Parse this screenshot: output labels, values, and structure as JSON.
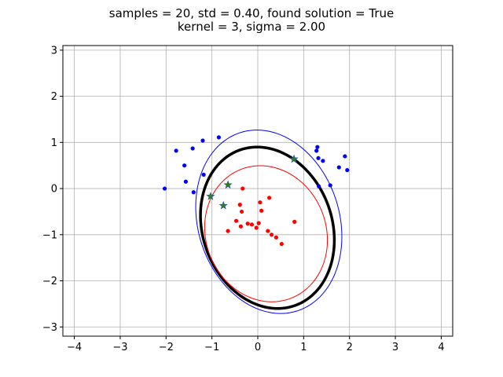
{
  "chart_data": {
    "type": "scatter",
    "title_lines": [
      "samples = 20, std = 0.40, found solution = True",
      "kernel = 3, sigma = 2.00"
    ],
    "xlabel": "",
    "ylabel": "",
    "xlim": [
      -4.25,
      4.25
    ],
    "ylim": [
      -3.2,
      3.1
    ],
    "xticks": [
      -4,
      -3,
      -2,
      -1,
      0,
      1,
      2,
      3,
      4
    ],
    "xtick_labels": [
      "−4",
      "−3",
      "−2",
      "−1",
      "0",
      "1",
      "2",
      "3",
      "4"
    ],
    "yticks": [
      -3,
      -2,
      -1,
      0,
      1,
      2,
      3
    ],
    "ytick_labels": [
      "−3",
      "−2",
      "−1",
      "0",
      "1",
      "2",
      "3"
    ],
    "grid": true,
    "colors": {
      "blue_points": "#0000ff",
      "red_points": "#ff0000",
      "support_vectors": "#2e7d1e",
      "boundary": "#000000",
      "margin_outer": "#0000ff",
      "margin_inner": "#ff0000"
    },
    "series": [
      {
        "kind": "points",
        "color_key": "blue_points",
        "points": [
          [
            -2.03,
            0.0
          ],
          [
            -1.78,
            0.82
          ],
          [
            -1.6,
            0.5
          ],
          [
            -1.57,
            0.15
          ],
          [
            -1.42,
            0.87
          ],
          [
            -1.4,
            -0.08
          ],
          [
            -1.2,
            1.04
          ],
          [
            -1.18,
            0.3
          ],
          [
            -0.85,
            1.11
          ],
          [
            1.28,
            0.82
          ],
          [
            1.3,
            0.9
          ],
          [
            1.32,
            0.66
          ],
          [
            1.33,
            0.05
          ],
          [
            1.42,
            0.6
          ],
          [
            1.58,
            0.07
          ],
          [
            1.77,
            0.46
          ],
          [
            1.9,
            0.7
          ],
          [
            1.95,
            0.4
          ]
        ]
      },
      {
        "kind": "points",
        "color_key": "red_points",
        "points": [
          [
            -0.65,
            -0.92
          ],
          [
            -0.47,
            -0.7
          ],
          [
            -0.39,
            -0.35
          ],
          [
            -0.37,
            -0.82
          ],
          [
            -0.35,
            -0.5
          ],
          [
            -0.33,
            0.0
          ],
          [
            -0.22,
            -0.76
          ],
          [
            -0.13,
            -0.78
          ],
          [
            -0.03,
            -0.85
          ],
          [
            0.02,
            -0.75
          ],
          [
            0.05,
            -0.3
          ],
          [
            0.08,
            -0.48
          ],
          [
            0.22,
            -0.92
          ],
          [
            0.25,
            -0.2
          ],
          [
            0.3,
            -1.0
          ],
          [
            0.4,
            -1.06
          ],
          [
            0.52,
            -1.2
          ],
          [
            0.8,
            -0.72
          ]
        ]
      },
      {
        "kind": "support_vectors",
        "color_key": "support_vectors",
        "points": [
          [
            -1.03,
            -0.17
          ],
          [
            -0.75,
            -0.37
          ],
          [
            -0.65,
            0.08
          ],
          [
            0.79,
            0.64
          ]
        ]
      }
    ],
    "contours": [
      {
        "level": "outer",
        "color_key": "margin_outer",
        "center": [
          0.24,
          -0.72
        ],
        "a": 1.54,
        "b": 2.03,
        "theta_deg": 18
      },
      {
        "level": "boundary",
        "color_key": "boundary",
        "center": [
          0.21,
          -0.85
        ],
        "a": 1.41,
        "b": 1.79,
        "theta_deg": 20
      },
      {
        "level": "inner",
        "color_key": "margin_inner",
        "center": [
          0.18,
          -0.98
        ],
        "a": 1.31,
        "b": 1.5,
        "theta_deg": 22
      }
    ]
  }
}
